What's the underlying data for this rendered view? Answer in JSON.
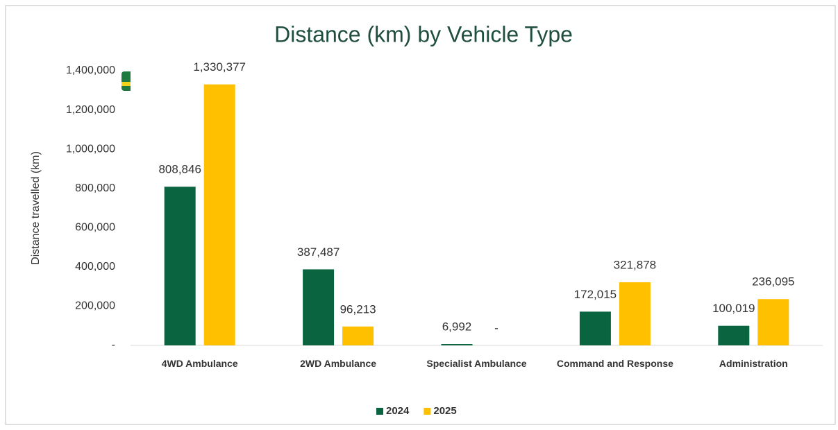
{
  "chart_data": {
    "type": "bar",
    "title": "Distance (km) by Vehicle Type",
    "y_label": "Distance travelled (km)",
    "categories": [
      "4WD Ambulance",
      "2WD Ambulance",
      "Specialist Ambulance",
      "Command and Response",
      "Administration"
    ],
    "series": [
      {
        "name": "2024",
        "color": "#0b6440",
        "values": [
          808846,
          387487,
          6992,
          172015,
          100019
        ],
        "value_labels": [
          "808,846",
          "387,487",
          "6,992",
          "172,015",
          "100,019"
        ]
      },
      {
        "name": "2025",
        "color": "#ffc000",
        "values": [
          1330377,
          96213,
          0,
          321878,
          236095
        ],
        "value_labels": [
          "1,330,377",
          "96,213",
          "-",
          "321,878",
          "236,095"
        ]
      }
    ],
    "ylim": [
      0,
      1400000
    ],
    "yticks": [
      {
        "value": 0,
        "label": "-"
      },
      {
        "value": 200000,
        "label": "200,000"
      },
      {
        "value": 400000,
        "label": "400,000"
      },
      {
        "value": 600000,
        "label": "600,000"
      },
      {
        "value": 800000,
        "label": "800,000"
      },
      {
        "value": 1000000,
        "label": "1,000,000"
      },
      {
        "value": 1200000,
        "label": "1,200,000"
      },
      {
        "value": 1400000,
        "label": "1,400,000"
      }
    ],
    "grid": false,
    "legend": "bottom"
  }
}
